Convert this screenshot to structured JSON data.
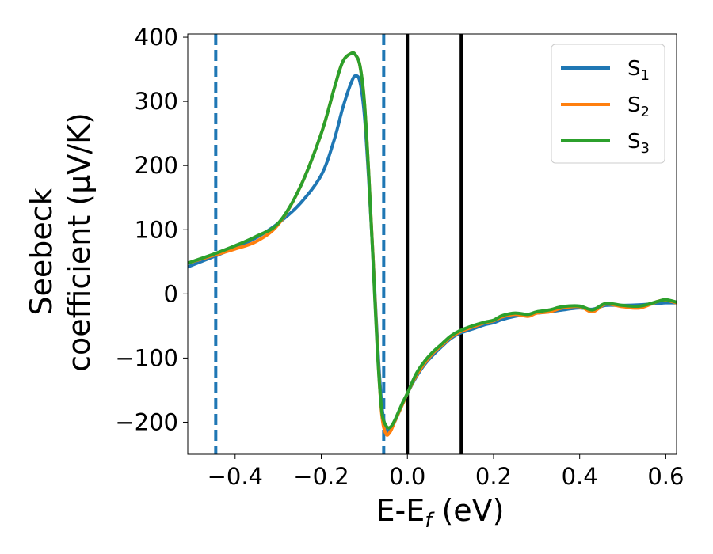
{
  "chart_data": {
    "type": "line",
    "xlabel_main": "E-E",
    "xlabel_sub": "f",
    "xlabel_unit": " (eV)",
    "ylabel_line1": "Seebeck",
    "ylabel_line2": "coefficient  (μV/K)",
    "xlim": [
      -0.51,
      0.625
    ],
    "ylim": [
      -250,
      405
    ],
    "xticks": [
      -0.4,
      -0.2,
      0.0,
      0.2,
      0.4,
      0.6
    ],
    "xtick_labels": [
      "−0.4",
      "−0.2",
      "0.0",
      "0.2",
      "0.4",
      "0.6"
    ],
    "yticks": [
      -200,
      -100,
      0,
      100,
      200,
      300,
      400
    ],
    "ytick_labels": [
      "−200",
      "−100",
      "0",
      "100",
      "200",
      "300",
      "400"
    ],
    "grid": false,
    "legend_position": "top-right",
    "vlines": [
      {
        "x": -0.445,
        "style": "dashed",
        "color": "#1f77b4"
      },
      {
        "x": -0.055,
        "style": "dashed",
        "color": "#1f77b4"
      },
      {
        "x": 0.0,
        "style": "solid",
        "color": "#000000"
      },
      {
        "x": 0.125,
        "style": "solid",
        "color": "#000000"
      }
    ],
    "series": [
      {
        "name": "S",
        "sub": "1",
        "color": "#1f77b4",
        "x": [
          -0.51,
          -0.45,
          -0.4,
          -0.35,
          -0.3,
          -0.25,
          -0.2,
          -0.17,
          -0.15,
          -0.13,
          -0.12,
          -0.11,
          -0.1,
          -0.09,
          -0.08,
          -0.07,
          -0.06,
          -0.05,
          -0.04,
          -0.03,
          -0.02,
          -0.01,
          0.0,
          0.02,
          0.04,
          0.06,
          0.08,
          0.1,
          0.12,
          0.15,
          0.18,
          0.2,
          0.22,
          0.25,
          0.28,
          0.3,
          0.33,
          0.36,
          0.4,
          0.43,
          0.46,
          0.5,
          0.54,
          0.58,
          0.6,
          0.625
        ],
        "y": [
          42,
          58,
          72,
          88,
          110,
          140,
          185,
          240,
          290,
          330,
          340,
          330,
          280,
          180,
          60,
          -70,
          -170,
          -210,
          -212,
          -200,
          -185,
          -170,
          -155,
          -130,
          -110,
          -95,
          -82,
          -70,
          -62,
          -55,
          -48,
          -45,
          -40,
          -35,
          -32,
          -30,
          -28,
          -25,
          -22,
          -24,
          -18,
          -18,
          -17,
          -15,
          -14,
          -14
        ]
      },
      {
        "name": "S",
        "sub": "2",
        "color": "#ff7f0e",
        "x": [
          -0.51,
          -0.45,
          -0.4,
          -0.35,
          -0.3,
          -0.25,
          -0.2,
          -0.17,
          -0.15,
          -0.13,
          -0.12,
          -0.11,
          -0.1,
          -0.09,
          -0.08,
          -0.07,
          -0.06,
          -0.05,
          -0.04,
          -0.03,
          -0.02,
          -0.01,
          0.0,
          0.02,
          0.04,
          0.06,
          0.08,
          0.1,
          0.12,
          0.15,
          0.18,
          0.2,
          0.22,
          0.25,
          0.28,
          0.3,
          0.33,
          0.36,
          0.4,
          0.43,
          0.46,
          0.5,
          0.54,
          0.58,
          0.6,
          0.625
        ],
        "y": [
          48,
          60,
          70,
          82,
          108,
          165,
          250,
          320,
          362,
          375,
          372,
          355,
          300,
          190,
          60,
          -80,
          -185,
          -218,
          -215,
          -200,
          -185,
          -170,
          -155,
          -128,
          -108,
          -92,
          -80,
          -68,
          -60,
          -52,
          -45,
          -42,
          -36,
          -32,
          -35,
          -30,
          -28,
          -22,
          -20,
          -28,
          -16,
          -20,
          -22,
          -12,
          -10,
          -14
        ]
      },
      {
        "name": "S",
        "sub": "3",
        "color": "#2ca02c",
        "x": [
          -0.51,
          -0.45,
          -0.4,
          -0.35,
          -0.3,
          -0.25,
          -0.2,
          -0.17,
          -0.15,
          -0.13,
          -0.12,
          -0.11,
          -0.1,
          -0.09,
          -0.08,
          -0.07,
          -0.06,
          -0.05,
          -0.04,
          -0.03,
          -0.02,
          -0.01,
          0.0,
          0.02,
          0.04,
          0.06,
          0.08,
          0.1,
          0.12,
          0.15,
          0.18,
          0.2,
          0.22,
          0.25,
          0.28,
          0.3,
          0.33,
          0.36,
          0.4,
          0.43,
          0.46,
          0.5,
          0.54,
          0.58,
          0.6,
          0.625
        ],
        "y": [
          48,
          62,
          75,
          90,
          110,
          165,
          250,
          320,
          362,
          375,
          372,
          355,
          300,
          190,
          55,
          -85,
          -180,
          -205,
          -208,
          -198,
          -183,
          -168,
          -155,
          -125,
          -105,
          -90,
          -78,
          -66,
          -58,
          -50,
          -44,
          -41,
          -34,
          -30,
          -32,
          -28,
          -25,
          -20,
          -19,
          -25,
          -15,
          -18,
          -19,
          -12,
          -9,
          -13
        ]
      }
    ]
  }
}
